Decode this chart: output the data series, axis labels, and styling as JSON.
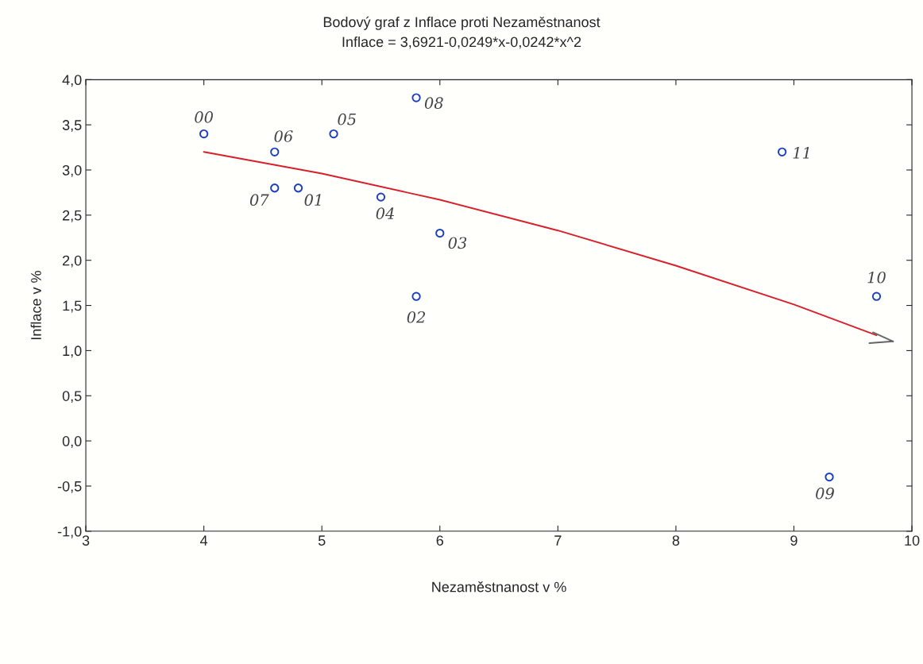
{
  "chart_data": {
    "type": "scatter",
    "title": "Bodový graf z Inflace proti Nezaměstnanost",
    "subtitle": "Inflace = 3,6921-0,0249*x-0,0242*x^2",
    "xlabel": "Nezaměstnanost v %",
    "ylabel": "Inflace v %",
    "series": [
      {
        "type": "scatter",
        "color": "#1c3fbf",
        "marker": "circle",
        "x": [
          4.0,
          4.8,
          5.8,
          6.0,
          5.5,
          5.1,
          4.6,
          4.6,
          5.8,
          9.3,
          9.7,
          8.9
        ],
        "values": [
          3.4,
          2.8,
          1.6,
          2.3,
          2.7,
          3.4,
          3.2,
          2.8,
          3.8,
          -0.4,
          1.6,
          3.2
        ]
      },
      {
        "type": "line",
        "color": "#d8202c",
        "line_style": "solid",
        "marker": "none",
        "x": [
          4.0,
          5.0,
          6.0,
          7.0,
          8.0,
          9.0,
          9.7
        ],
        "values": [
          3.2,
          2.96,
          2.67,
          2.33,
          1.94,
          1.51,
          1.17
        ]
      }
    ],
    "annotations": [
      {
        "text": "00",
        "x": 4.0,
        "y": 3.4
      },
      {
        "text": "01",
        "x": 4.8,
        "y": 2.8
      },
      {
        "text": "02",
        "x": 5.8,
        "y": 1.6
      },
      {
        "text": "03",
        "x": 6.0,
        "y": 2.3
      },
      {
        "text": "04",
        "x": 5.5,
        "y": 2.7
      },
      {
        "text": "05",
        "x": 5.1,
        "y": 3.4
      },
      {
        "text": "06",
        "x": 4.6,
        "y": 3.2
      },
      {
        "text": "07",
        "x": 4.6,
        "y": 2.8
      },
      {
        "text": "08",
        "x": 5.8,
        "y": 3.8
      },
      {
        "text": "09",
        "x": 9.3,
        "y": -0.4
      },
      {
        "text": "10",
        "x": 9.7,
        "y": 1.6
      },
      {
        "text": "11",
        "x": 8.9,
        "y": 3.2
      }
    ],
    "xlim": [
      3,
      10
    ],
    "xticks": [
      3,
      4,
      5,
      6,
      7,
      8,
      9,
      10
    ],
    "ylim": [
      -1.0,
      4.0
    ],
    "yticks": [
      {
        "value": -1.0,
        "label": "-1,0"
      },
      {
        "value": -0.5,
        "label": "-0,5"
      },
      {
        "value": 0.0,
        "label": "0,0"
      },
      {
        "value": 0.5,
        "label": "0,5"
      },
      {
        "value": 1.0,
        "label": "1,0"
      },
      {
        "value": 1.5,
        "label": "1,5"
      },
      {
        "value": 2.0,
        "label": "2,0"
      },
      {
        "value": 2.5,
        "label": "2,5"
      },
      {
        "value": 3.0,
        "label": "3,0"
      },
      {
        "value": 3.5,
        "label": "3,5"
      },
      {
        "value": 4.0,
        "label": "4,0"
      }
    ],
    "grid": false,
    "legend": false
  }
}
